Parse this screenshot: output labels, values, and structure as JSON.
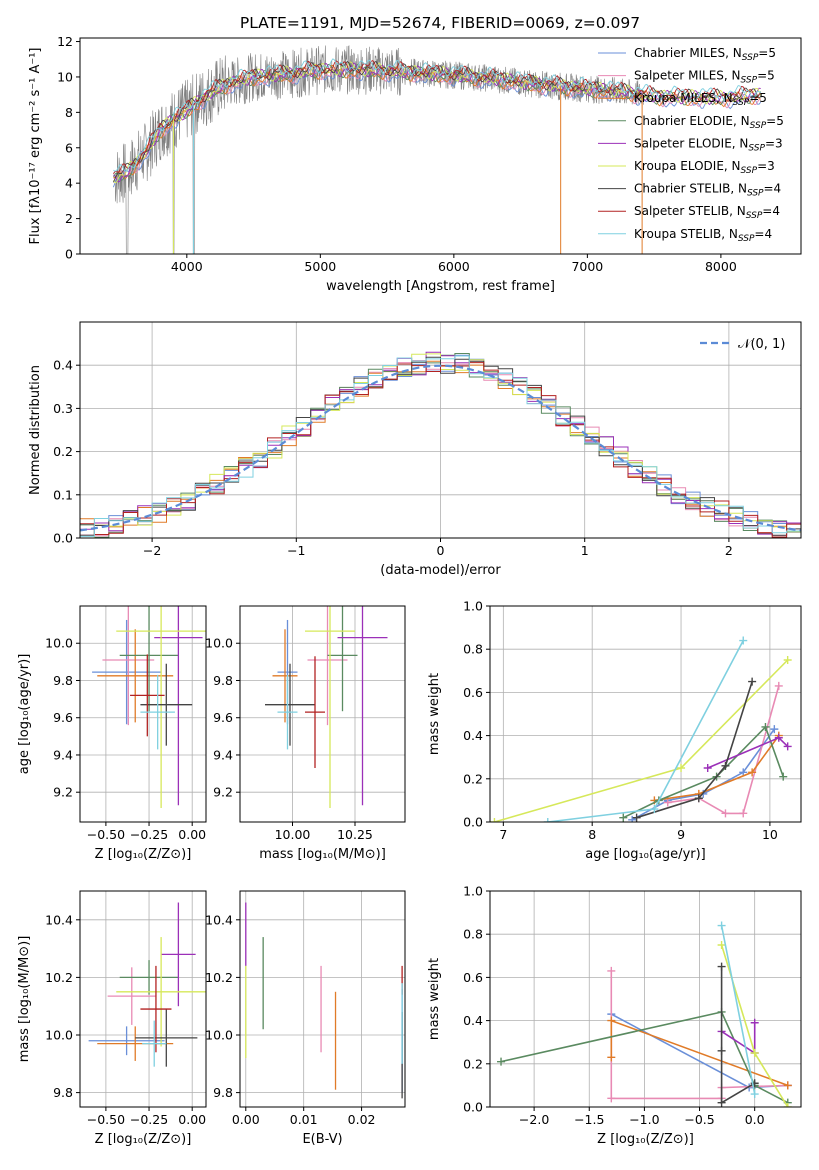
{
  "chart_data": [
    {
      "type": "line",
      "title": "PLATE=1191, MJD=52674, FIBERID=0069, z=0.097",
      "xlabel": "wavelength [Angstrom, rest frame]",
      "ylabel": "Flux [fλ10⁻¹⁷ erg cm⁻² s⁻¹ A⁻¹]",
      "xlim": [
        3200,
        8600
      ],
      "ylim": [
        0,
        12.2
      ],
      "xticks": [
        4000,
        5000,
        6000,
        7000,
        8000
      ],
      "yticks": [
        0,
        2,
        4,
        6,
        8,
        10,
        12
      ],
      "grid": false,
      "legend_position": "right",
      "series": [
        {
          "name": "Chabrier MILES, N",
          "sub": "SSP",
          "suffix": "=5",
          "color": "#6a8fd8"
        },
        {
          "name": "Salpeter MILES, N",
          "sub": "SSP",
          "suffix": "=5",
          "color": "#e88ab4"
        },
        {
          "name": "Kroupa MILES, N",
          "sub": "SSP",
          "suffix": "=5",
          "color": "#e07b28"
        },
        {
          "name": "Chabrier ELODIE, N",
          "sub": "SSP",
          "suffix": "=5",
          "color": "#5a8a60"
        },
        {
          "name": "Salpeter ELODIE, N",
          "sub": "SSP",
          "suffix": "=3",
          "color": "#9b30b8"
        },
        {
          "name": "Kroupa ELODIE, N",
          "sub": "SSP",
          "suffix": "=3",
          "color": "#d6e85a"
        },
        {
          "name": "Chabrier STELIB, N",
          "sub": "SSP",
          "suffix": "=4",
          "color": "#444444"
        },
        {
          "name": "Salpeter STELIB, N",
          "sub": "SSP",
          "suffix": "=4",
          "color": "#b22222"
        },
        {
          "name": "Kroupa STELIB, N",
          "sub": "SSP",
          "suffix": "=4",
          "color": "#7fd0e0"
        }
      ],
      "continuum": {
        "x": [
          3450,
          3550,
          3650,
          3700,
          3800,
          3900,
          4000,
          4100,
          4200,
          4300,
          4500,
          4800,
          5000,
          5300,
          5600,
          6000,
          6300,
          6600,
          6900,
          7200,
          7500,
          8000,
          8300
        ],
        "y": [
          4.3,
          4.6,
          5.4,
          5.8,
          7.0,
          7.6,
          8.1,
          8.7,
          9.2,
          9.6,
          10.0,
          10.2,
          10.4,
          10.4,
          10.3,
          10.1,
          9.9,
          9.6,
          9.4,
          9.2,
          8.9,
          8.8,
          9.0
        ]
      },
      "data_color": "#808080"
    },
    {
      "type": "histogram",
      "xlabel": "(data-model)/error",
      "ylabel": "Normed distribution",
      "xlim": [
        -2.5,
        2.5
      ],
      "ylim": [
        0,
        0.5
      ],
      "xticks": [
        -2,
        -1,
        0,
        1,
        2
      ],
      "xtick_labels": [
        "−2",
        "−1",
        "0",
        "1",
        "2"
      ],
      "yticks": [
        0.0,
        0.1,
        0.2,
        0.3,
        0.4
      ],
      "ytick_labels": [
        "0.0",
        "0.1",
        "0.2",
        "0.3",
        "0.4"
      ],
      "grid": true,
      "legend": {
        "label": "𝒩(0, 1)",
        "position": "top-right"
      },
      "gaussian": {
        "mu": 0,
        "sigma": 1,
        "color": "#5b8bd6"
      },
      "bin_width": 0.1,
      "series_colors": [
        "#6a8fd8",
        "#e88ab4",
        "#e07b28",
        "#5a8a60",
        "#9b30b8",
        "#d6e85a",
        "#444444",
        "#b22222",
        "#7fd0e0"
      ]
    },
    {
      "type": "scatter",
      "xlabel": "Z [log₁₀(Z/Z⊙)]",
      "ylabel": "age  [log₁₀(age/yr)]",
      "xlim": [
        -0.65,
        0.08
      ],
      "ylim": [
        9.04,
        10.2
      ],
      "xticks": [
        -0.5,
        -0.25,
        0.0
      ],
      "xtick_labels": [
        "−0.50",
        "−0.25",
        "0.00"
      ],
      "yticks": [
        9.2,
        9.4,
        9.6,
        9.8,
        10.0
      ],
      "ytick_labels": [
        "9.2",
        "9.4",
        "9.6",
        "9.8",
        "10.0"
      ],
      "grid": true,
      "points": [
        {
          "x": -0.38,
          "xerr": 0.2,
          "y": 9.845,
          "yerr": 0.28,
          "color": "#6a8fd8"
        },
        {
          "x": -0.37,
          "xerr": 0.15,
          "y": 9.91,
          "yerr": 0.35,
          "color": "#e88ab4"
        },
        {
          "x": -0.33,
          "xerr": 0.22,
          "y": 9.825,
          "yerr": 0.25,
          "color": "#e07b28"
        },
        {
          "x": -0.25,
          "xerr": 0.17,
          "y": 9.935,
          "yerr": 0.3,
          "color": "#5a8a60"
        },
        {
          "x": -0.08,
          "xerr": 0.14,
          "y": 10.03,
          "yerr": 0.9,
          "color": "#9b30b8"
        },
        {
          "x": -0.18,
          "xerr": 0.26,
          "y": 10.065,
          "yerr": 0.95,
          "color": "#d6e85a"
        },
        {
          "x": -0.15,
          "xerr": 0.15,
          "y": 9.67,
          "yerr": 0.22,
          "color": "#444444"
        },
        {
          "x": -0.26,
          "xerr": 0.1,
          "y": 9.72,
          "yerr": 0.22,
          "color": "#b22222"
        },
        {
          "x": -0.2,
          "xerr": 0.1,
          "y": 9.63,
          "yerr": 0.2,
          "color": "#7fd0e0"
        }
      ]
    },
    {
      "type": "scatter",
      "xlabel": "mass [log₁₀(M/M⊙)]",
      "ylabel": "",
      "xlim": [
        9.79,
        10.45
      ],
      "ylim": [
        9.04,
        10.2
      ],
      "xticks": [
        10.0,
        10.25
      ],
      "xtick_labels": [
        "10.00",
        "10.25"
      ],
      "yticks": [
        9.2,
        9.4,
        9.6,
        9.8,
        10.0
      ],
      "ytick_labels": [
        "9.2",
        "9.4",
        "9.6",
        "9.8",
        "10.0"
      ],
      "grid": true,
      "points": [
        {
          "x": 9.98,
          "xerr": 0.04,
          "y": 9.845,
          "yerr": 0.28,
          "color": "#6a8fd8"
        },
        {
          "x": 10.14,
          "xerr": 0.08,
          "y": 9.91,
          "yerr": 0.35,
          "color": "#e88ab4"
        },
        {
          "x": 9.97,
          "xerr": 0.05,
          "y": 9.825,
          "yerr": 0.25,
          "color": "#e07b28"
        },
        {
          "x": 10.2,
          "xerr": 0.06,
          "y": 9.935,
          "yerr": 0.3,
          "color": "#5a8a60"
        },
        {
          "x": 10.28,
          "xerr": 0.1,
          "y": 10.03,
          "yerr": 0.9,
          "color": "#9b30b8"
        },
        {
          "x": 10.15,
          "xerr": 0.1,
          "y": 10.065,
          "yerr": 0.95,
          "color": "#d6e85a"
        },
        {
          "x": 9.99,
          "xerr": 0.1,
          "y": 9.67,
          "yerr": 0.22,
          "color": "#444444"
        },
        {
          "x": 10.09,
          "xerr": 0.04,
          "y": 9.63,
          "yerr": 0.3,
          "color": "#b22222"
        },
        {
          "x": 9.98,
          "xerr": 0.04,
          "y": 9.63,
          "yerr": 0.2,
          "color": "#7fd0e0"
        }
      ]
    },
    {
      "type": "line",
      "xlabel": "age  [log₁₀(age/yr)]",
      "ylabel": "mass weight",
      "xlim": [
        6.85,
        10.35
      ],
      "ylim": [
        0,
        1
      ],
      "xticks": [
        7,
        8,
        9,
        10
      ],
      "xtick_labels": [
        "7",
        "8",
        "9",
        "10"
      ],
      "yticks": [
        0.0,
        0.2,
        0.4,
        0.6,
        0.8,
        1.0
      ],
      "ytick_labels": [
        "0.0",
        "0.2",
        "0.4",
        "0.6",
        "0.8",
        "1.0"
      ],
      "grid": true,
      "series": [
        {
          "color": "#6a8fd8",
          "x": [
            8.45,
            8.85,
            9.25,
            9.7,
            10.05
          ],
          "y": [
            0.01,
            0.1,
            0.13,
            0.23,
            0.43
          ]
        },
        {
          "color": "#e88ab4",
          "x": [
            8.85,
            9.2,
            9.5,
            9.7,
            10.1
          ],
          "y": [
            0.09,
            0.11,
            0.04,
            0.04,
            0.63
          ]
        },
        {
          "color": "#e07b28",
          "x": [
            8.7,
            9.2,
            9.8,
            10.1
          ],
          "y": [
            0.1,
            0.13,
            0.23,
            0.4
          ]
        },
        {
          "color": "#5a8a60",
          "x": [
            8.35,
            8.75,
            9.4,
            9.95,
            10.15
          ],
          "y": [
            0.02,
            0.1,
            0.21,
            0.44,
            0.21
          ]
        },
        {
          "color": "#9b30b8",
          "x": [
            9.3,
            10.1,
            10.2
          ],
          "y": [
            0.25,
            0.39,
            0.35
          ]
        },
        {
          "color": "#d6e85a",
          "x": [
            6.9,
            9.0,
            10.2
          ],
          "y": [
            0.0,
            0.25,
            0.75
          ]
        },
        {
          "color": "#444444",
          "x": [
            8.5,
            9.2,
            9.5,
            9.8
          ],
          "y": [
            0.02,
            0.11,
            0.26,
            0.65
          ]
        },
        {
          "color": "#b22222",
          "x": [],
          "y": []
        },
        {
          "color": "#7fd0e0",
          "x": [
            7.5,
            8.7,
            9.7
          ],
          "y": [
            0.0,
            0.06,
            0.84
          ]
        }
      ]
    },
    {
      "type": "scatter",
      "xlabel": "Z [log₁₀(Z/Z⊙)]",
      "ylabel": "mass [log₁₀(M/M⊙)]",
      "xlim": [
        -0.65,
        0.08
      ],
      "ylim": [
        9.75,
        10.5
      ],
      "xticks": [
        -0.5,
        -0.25,
        0.0
      ],
      "xtick_labels": [
        "−0.50",
        "−0.25",
        "0.00"
      ],
      "yticks": [
        9.8,
        10.0,
        10.2,
        10.4
      ],
      "ytick_labels": [
        "9.8",
        "10.0",
        "10.2",
        "10.4"
      ],
      "grid": true,
      "points": [
        {
          "x": -0.38,
          "xerr": 0.22,
          "y": 9.98,
          "yerr": 0.05,
          "color": "#6a8fd8"
        },
        {
          "x": -0.35,
          "xerr": 0.14,
          "y": 10.135,
          "yerr": 0.1,
          "color": "#e88ab4"
        },
        {
          "x": -0.33,
          "xerr": 0.22,
          "y": 9.97,
          "yerr": 0.06,
          "color": "#e07b28"
        },
        {
          "x": -0.25,
          "xerr": 0.17,
          "y": 10.2,
          "yerr": 0.06,
          "color": "#5a8a60"
        },
        {
          "x": -0.08,
          "xerr": 0.1,
          "y": 10.28,
          "yerr": 0.18,
          "color": "#9b30b8"
        },
        {
          "x": -0.18,
          "xerr": 0.26,
          "y": 10.15,
          "yerr": 0.19,
          "color": "#d6e85a"
        },
        {
          "x": -0.15,
          "xerr": 0.18,
          "y": 9.99,
          "yerr": 0.1,
          "color": "#444444"
        },
        {
          "x": -0.21,
          "xerr": 0.09,
          "y": 10.09,
          "yerr": 0.15,
          "color": "#b22222"
        },
        {
          "x": -0.22,
          "xerr": 0.07,
          "y": 9.97,
          "yerr": 0.08,
          "color": "#7fd0e0"
        }
      ]
    },
    {
      "type": "scatter",
      "xlabel": "E(B-V)",
      "ylabel": "",
      "xlim": [
        -0.001,
        0.0275
      ],
      "ylim": [
        9.75,
        10.5
      ],
      "xticks": [
        0.0,
        0.01,
        0.02
      ],
      "xtick_labels": [
        "0.00",
        "0.01",
        "0.02"
      ],
      "yticks": [
        9.8,
        10.0,
        10.2,
        10.4
      ],
      "ytick_labels": [
        "9.8",
        "10.0",
        "10.2",
        "10.4"
      ],
      "grid": true,
      "points": [
        {
          "x": 0.027,
          "y": 9.98,
          "yerr": 0.18,
          "color": "#6a8fd8"
        },
        {
          "x": 0.013,
          "y": 10.09,
          "yerr": 0.15,
          "color": "#e88ab4"
        },
        {
          "x": 0.0155,
          "y": 9.98,
          "yerr": 0.17,
          "color": "#e07b28"
        },
        {
          "x": 0.003,
          "y": 10.18,
          "yerr": 0.16,
          "color": "#5a8a60"
        },
        {
          "x": 0.0,
          "y": 10.35,
          "yerr": 0.11,
          "color": "#9b30b8"
        },
        {
          "x": 0.0,
          "y": 10.08,
          "yerr": 0.16,
          "color": "#d6e85a"
        },
        {
          "x": 0.027,
          "y": 9.93,
          "yerr": 0.15,
          "color": "#444444"
        },
        {
          "x": 0.027,
          "y": 10.19,
          "yerr": 0.05,
          "color": "#b22222"
        },
        {
          "x": 0.027,
          "y": 10.04,
          "yerr": 0.14,
          "color": "#7fd0e0"
        }
      ]
    },
    {
      "type": "line",
      "xlabel": "Z [log₁₀(Z/Z⊙)]",
      "ylabel": "mass weight",
      "xlim": [
        -2.4,
        0.42
      ],
      "ylim": [
        0,
        1
      ],
      "xticks": [
        -2.0,
        -1.5,
        -1.0,
        -0.5,
        0.0
      ],
      "xtick_labels": [
        "−2.0",
        "−1.5",
        "−1.0",
        "−0.5",
        "0.0"
      ],
      "yticks": [
        0.0,
        0.2,
        0.4,
        0.6,
        0.8,
        1.0
      ],
      "ytick_labels": [
        "0.0",
        "0.2",
        "0.4",
        "0.6",
        "0.8",
        "1.0"
      ],
      "grid": true,
      "series": [
        {
          "color": "#6a8fd8",
          "x": [
            -1.3,
            -0.05,
            0.3
          ],
          "y": [
            0.43,
            0.09,
            0.1
          ]
        },
        {
          "color": "#e88ab4",
          "x": [
            -1.3,
            -1.3,
            -0.3,
            -0.3,
            0.3
          ],
          "y": [
            0.63,
            0.04,
            0.04,
            0.09,
            0.1
          ]
        },
        {
          "color": "#e07b28",
          "x": [
            -1.3,
            -1.3,
            0.3
          ],
          "y": [
            0.23,
            0.4,
            0.1
          ]
        },
        {
          "color": "#5a8a60",
          "x": [
            -2.3,
            -0.3,
            0.0,
            0.3
          ],
          "y": [
            0.21,
            0.44,
            0.1,
            0.02
          ]
        },
        {
          "color": "#9b30b8",
          "x": [
            -0.3,
            0.0,
            0.0
          ],
          "y": [
            0.35,
            0.25,
            0.39
          ]
        },
        {
          "color": "#d6e85a",
          "x": [
            -0.3,
            0.0,
            0.3
          ],
          "y": [
            0.75,
            0.25,
            0.0
          ]
        },
        {
          "color": "#444444",
          "x": [
            -0.3,
            -0.3,
            -0.3,
            0.0
          ],
          "y": [
            0.65,
            0.26,
            0.02,
            0.11
          ]
        },
        {
          "color": "#b22222",
          "x": [],
          "y": []
        },
        {
          "color": "#7fd0e0",
          "x": [
            -0.3,
            0.0
          ],
          "y": [
            0.84,
            0.06
          ]
        }
      ]
    }
  ]
}
